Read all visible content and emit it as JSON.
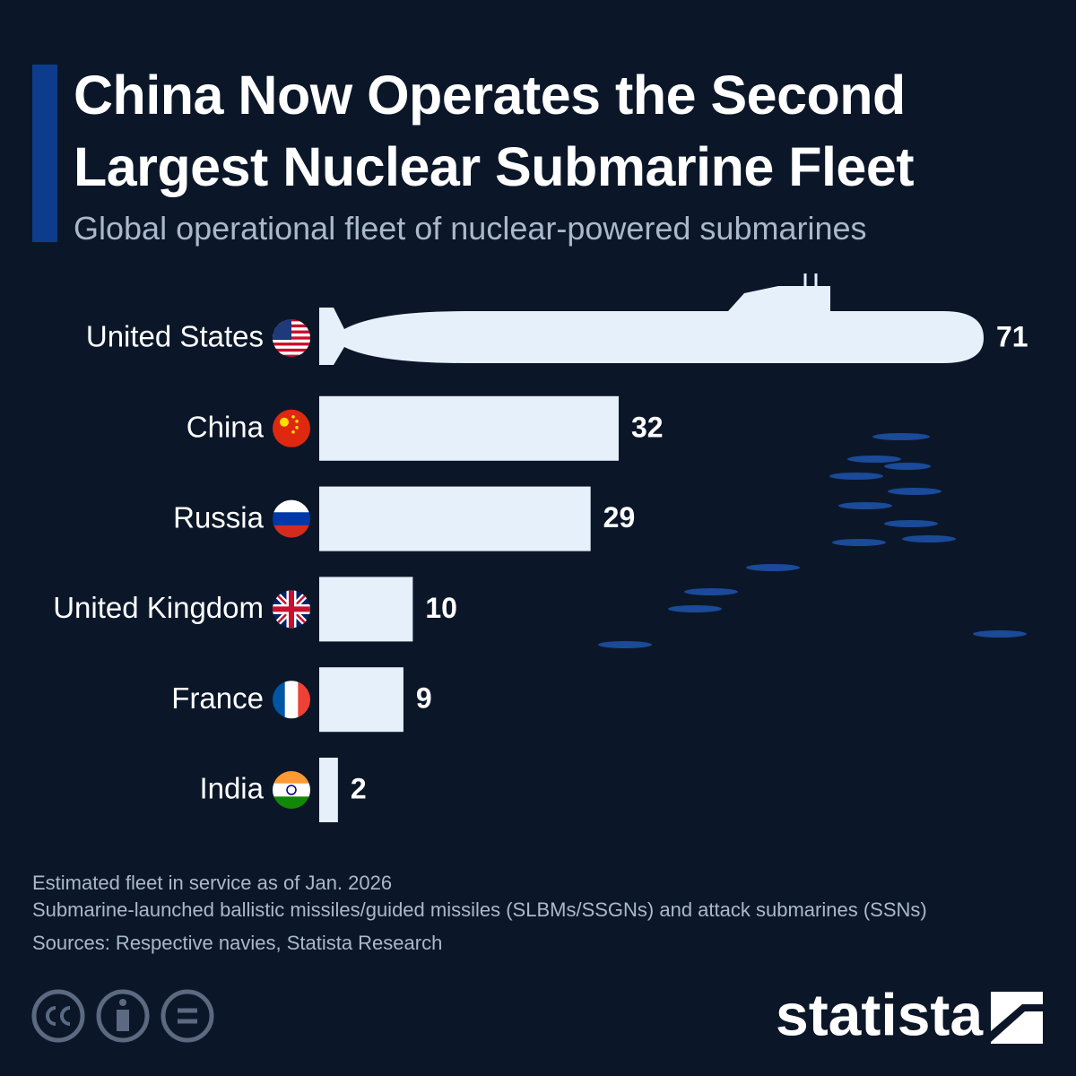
{
  "chart_data": {
    "type": "bar",
    "title": "China Now Operates the Second Largest Nuclear Submarine Fleet",
    "subtitle": "Global operational fleet of nuclear-powered submarines",
    "categories": [
      "United States",
      "China",
      "Russia",
      "United Kingdom",
      "France",
      "India"
    ],
    "values": [
      71,
      32,
      29,
      10,
      9,
      2
    ],
    "color": "#e6f0fb",
    "notes": [
      "Estimated fleet in service as of Jan. 2026",
      "Submarine-launched ballistic missiles/guided missiles (SLBMs/SSGNs) and attack submarines (SSNs)"
    ],
    "source": "Sources: Respective navies, Statista Research",
    "brand": "statista"
  }
}
